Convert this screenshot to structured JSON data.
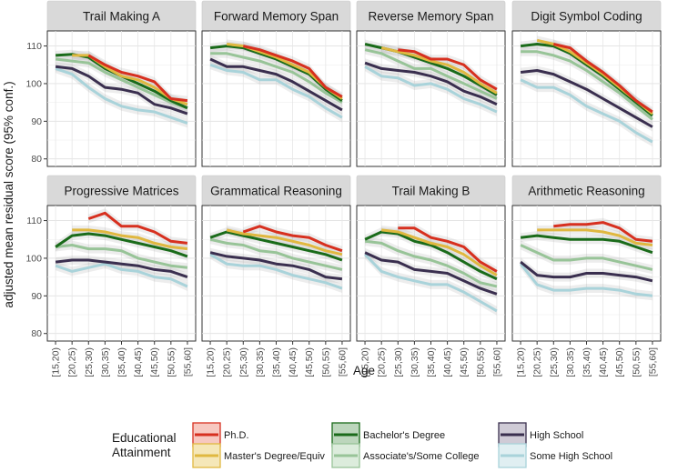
{
  "chart_data": {
    "type": "line",
    "xlabel": "Age",
    "ylabel": "adjusted mean residual score (95% conf.)",
    "ylim": [
      78,
      114
    ],
    "yticks": [
      80,
      90,
      100,
      110
    ],
    "categories": [
      "[15,20)",
      "[20,25)",
      "[25,30)",
      "[30,35)",
      "[35,40)",
      "[40,45)",
      "[45,50)",
      "[50,55)",
      "[55,60]"
    ],
    "legend": {
      "title_lines": [
        "Educational",
        "Attainment"
      ],
      "position": "bottom",
      "entries": [
        {
          "key": "phd",
          "label": "Ph.D.",
          "color": "#d7301f",
          "fill": "#f7c8c0"
        },
        {
          "key": "masters",
          "label": "Master's Degree/Equiv",
          "color": "#e0b840",
          "fill": "#f5e7b8"
        },
        {
          "key": "bachelors",
          "label": "Bachelor's Degree",
          "color": "#1a6b1a",
          "fill": "#bcd6bc"
        },
        {
          "key": "associates",
          "label": "Associate's/Some College",
          "color": "#98c498",
          "fill": "#dcecdc"
        },
        {
          "key": "highschool",
          "label": "High School",
          "color": "#3a2f4f",
          "fill": "#cfcbd6"
        },
        {
          "key": "somehs",
          "label": "Some High School",
          "color": "#a9d3da",
          "fill": "#e0eff2"
        }
      ]
    },
    "panels": [
      {
        "title": "Trail Making A",
        "series": [
          {
            "key": "phd",
            "values": [
              null,
              null,
              107.5,
              105,
              103,
              102,
              100.5,
              96,
              95.5
            ]
          },
          {
            "key": "masters",
            "values": [
              null,
              107.5,
              107.5,
              104.5,
              102,
              101,
              99,
              96,
              94.5
            ]
          },
          {
            "key": "bachelors",
            "values": [
              107.5,
              107.8,
              107,
              104,
              102,
              100,
              98,
              95.5,
              93.5
            ]
          },
          {
            "key": "associates",
            "values": [
              106.5,
              106,
              105.5,
              103,
              101,
              99,
              97,
              95,
              93.5
            ]
          },
          {
            "key": "highschool",
            "values": [
              104.5,
              104,
              102,
              99,
              98.5,
              97.5,
              94.5,
              93.5,
              92
            ]
          },
          {
            "key": "somehs",
            "values": [
              104,
              102.5,
              99,
              96,
              94,
              93,
              92.5,
              91,
              89.5
            ]
          }
        ]
      },
      {
        "title": "Forward Memory Span",
        "series": [
          {
            "key": "phd",
            "values": [
              null,
              null,
              110,
              109,
              107.5,
              106,
              104,
              99,
              96.5
            ]
          },
          {
            "key": "masters",
            "values": [
              null,
              110.5,
              110,
              108.5,
              107,
              105,
              103,
              99,
              96
            ]
          },
          {
            "key": "bachelors",
            "values": [
              109.5,
              110,
              109.5,
              108,
              106.5,
              104.5,
              102.5,
              98.5,
              95.5
            ]
          },
          {
            "key": "associates",
            "values": [
              108,
              108,
              107,
              106,
              104.5,
              103,
              100.5,
              97.5,
              95
            ]
          },
          {
            "key": "highschool",
            "values": [
              106.5,
              104.5,
              104.5,
              103.5,
              102.5,
              100.5,
              98,
              95.5,
              93
            ]
          },
          {
            "key": "somehs",
            "values": [
              105,
              103.5,
              103,
              101,
              101,
              98.5,
              96.5,
              93.5,
              91
            ]
          }
        ]
      },
      {
        "title": "Reverse Memory Span",
        "series": [
          {
            "key": "phd",
            "values": [
              null,
              null,
              109,
              108.5,
              106.5,
              106.5,
              105,
              101,
              98.5
            ]
          },
          {
            "key": "masters",
            "values": [
              null,
              109.5,
              108.5,
              107.5,
              106,
              105,
              103,
              100,
              97.5
            ]
          },
          {
            "key": "bachelors",
            "values": [
              110.5,
              109.5,
              108.5,
              107,
              105.5,
              104,
              102,
              99.5,
              97
            ]
          },
          {
            "key": "associates",
            "values": [
              109,
              108,
              106,
              104,
              104,
              102,
              100,
              98,
              96
            ]
          },
          {
            "key": "highschool",
            "values": [
              105.5,
              104,
              103.5,
              103,
              102,
              100.5,
              98,
              96.5,
              94.5
            ]
          },
          {
            "key": "somehs",
            "values": [
              104.5,
              102,
              101.5,
              99.5,
              100,
              98.5,
              96,
              94.5,
              92.5
            ]
          }
        ]
      },
      {
        "title": "Digit Symbol Coding",
        "series": [
          {
            "key": "phd",
            "values": [
              null,
              null,
              110.5,
              109.5,
              106,
              103,
              99.5,
              95.5,
              92.5
            ]
          },
          {
            "key": "masters",
            "values": [
              null,
              111.5,
              110.5,
              108.5,
              105.5,
              102.5,
              99,
              95.5,
              92
            ]
          },
          {
            "key": "bachelors",
            "values": [
              110,
              110.5,
              110,
              108,
              105,
              102,
              98.5,
              95,
              91.5
            ]
          },
          {
            "key": "associates",
            "values": [
              108.5,
              108.5,
              107.5,
              106,
              103.5,
              100.5,
              97.5,
              94,
              90.5
            ]
          },
          {
            "key": "highschool",
            "values": [
              103,
              103.5,
              102.5,
              100.5,
              98.5,
              96,
              93.5,
              91,
              88.5
            ]
          },
          {
            "key": "somehs",
            "values": [
              101,
              99,
              99,
              97,
              94,
              92,
              90,
              87,
              84.5
            ]
          }
        ]
      },
      {
        "title": "Progressive Matrices",
        "series": [
          {
            "key": "phd",
            "values": [
              null,
              null,
              110.5,
              112,
              108.5,
              108.5,
              107,
              104.5,
              104
            ]
          },
          {
            "key": "masters",
            "values": [
              null,
              107.5,
              107.5,
              107,
              106,
              105.5,
              104,
              103,
              102.5
            ]
          },
          {
            "key": "bachelors",
            "values": [
              103,
              106,
              106.5,
              106,
              105,
              104,
              103,
              102,
              100.5
            ]
          },
          {
            "key": "associates",
            "values": [
              103,
              103.5,
              102.5,
              102.5,
              102,
              100,
              99,
              98,
              97.5
            ]
          },
          {
            "key": "highschool",
            "values": [
              99,
              99.5,
              99.5,
              99,
              98.5,
              98,
              97,
              96.5,
              95
            ]
          },
          {
            "key": "somehs",
            "values": [
              98,
              96.5,
              97.5,
              98.5,
              97,
              96.5,
              95,
              94.5,
              92.5
            ]
          }
        ]
      },
      {
        "title": "Grammatical Reasoning",
        "series": [
          {
            "key": "phd",
            "values": [
              null,
              null,
              107,
              108.5,
              107,
              106,
              105.5,
              103.5,
              102
            ]
          },
          {
            "key": "masters",
            "values": [
              null,
              107.5,
              106.5,
              106,
              105.5,
              104.5,
              103.5,
              102,
              101
            ]
          },
          {
            "key": "bachelors",
            "values": [
              105.5,
              107,
              106,
              105,
              104,
              103,
              102,
              101,
              99.5
            ]
          },
          {
            "key": "associates",
            "values": [
              105,
              104,
              103.5,
              102,
              101.5,
              100,
              99,
              98,
              97
            ]
          },
          {
            "key": "highschool",
            "values": [
              101.5,
              100.5,
              100,
              99.5,
              98.5,
              98,
              97,
              95,
              94.5
            ]
          },
          {
            "key": "somehs",
            "values": [
              101,
              98.5,
              98,
              98,
              97,
              95.5,
              94.5,
              93.5,
              92
            ]
          }
        ]
      },
      {
        "title": "Trail Making B",
        "series": [
          {
            "key": "phd",
            "values": [
              null,
              null,
              108,
              108,
              105.5,
              104.5,
              103,
              99,
              96.5
            ]
          },
          {
            "key": "masters",
            "values": [
              null,
              107.5,
              107,
              105.5,
              104,
              103,
              101,
              98,
              95.5
            ]
          },
          {
            "key": "bachelors",
            "values": [
              105,
              107,
              106.5,
              104.5,
              103.5,
              101.5,
              99,
              96.5,
              94.5
            ]
          },
          {
            "key": "associates",
            "values": [
              104.5,
              104,
              102,
              100.5,
              99.5,
              98,
              96,
              93.5,
              92.5
            ]
          },
          {
            "key": "highschool",
            "values": [
              101.5,
              99.5,
              99,
              97,
              96.5,
              96,
              94,
              92,
              90.5
            ]
          },
          {
            "key": "somehs",
            "values": [
              101,
              96.5,
              95,
              94,
              93,
              93,
              91,
              88.5,
              86
            ]
          }
        ]
      },
      {
        "title": "Arithmetic Reasoning",
        "series": [
          {
            "key": "phd",
            "values": [
              null,
              null,
              108.5,
              109,
              109,
              109.5,
              108,
              105,
              104.5
            ]
          },
          {
            "key": "masters",
            "values": [
              null,
              107.5,
              107.5,
              107.5,
              107.5,
              107,
              106,
              104,
              103.5
            ]
          },
          {
            "key": "bachelors",
            "values": [
              105.5,
              106,
              105.5,
              105,
              105,
              105,
              104.5,
              103,
              101.5
            ]
          },
          {
            "key": "associates",
            "values": [
              103.5,
              101.5,
              99.5,
              99.5,
              100,
              100,
              99,
              98,
              97
            ]
          },
          {
            "key": "highschool",
            "values": [
              99,
              95.5,
              95,
              95,
              96,
              96,
              95.5,
              95,
              94
            ]
          },
          {
            "key": "somehs",
            "values": [
              98.5,
              93,
              91.5,
              91.5,
              92,
              92,
              91.5,
              90.5,
              90
            ]
          }
        ]
      }
    ]
  }
}
